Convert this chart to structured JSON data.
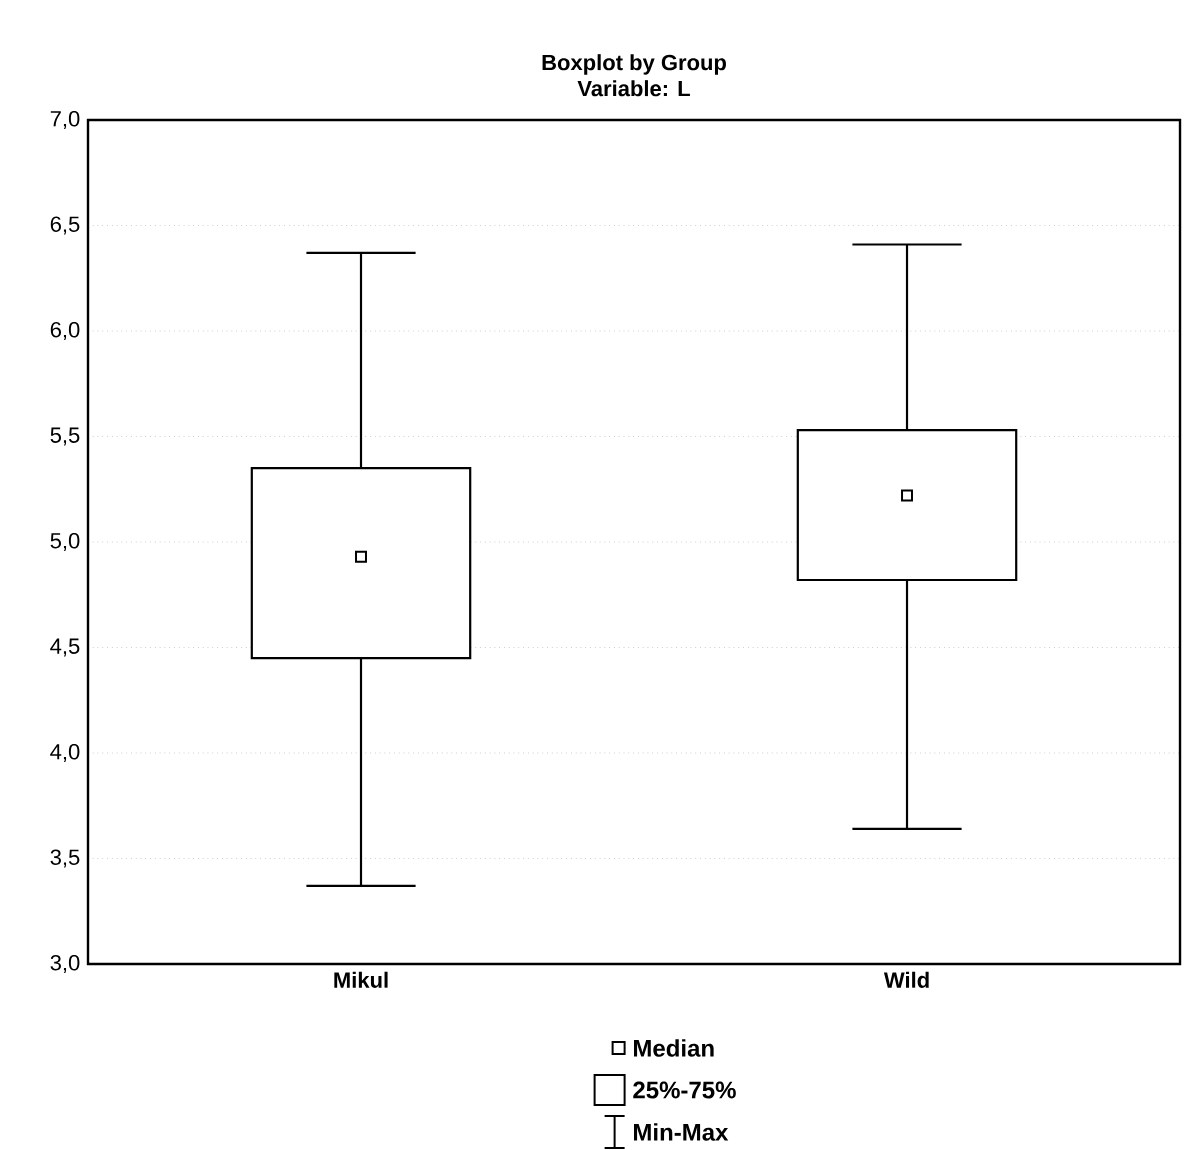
{
  "chart_data": {
    "type": "box",
    "title": "Boxplot by Group",
    "subtitle": "Variable: L",
    "categories": [
      "Mikul",
      "Wild"
    ],
    "boxes": [
      {
        "low": 3.37,
        "q1": 4.45,
        "median": 4.93,
        "q3": 5.35,
        "high": 6.37
      },
      {
        "low": 3.64,
        "q1": 4.82,
        "median": 5.22,
        "q3": 5.53,
        "high": 6.41
      }
    ],
    "color": "#000000",
    "marker": "square",
    "grid": "y",
    "annotations": [
      "Median",
      "25%-75%",
      "Min-Max"
    ],
    "ylim": [
      3,
      7
    ],
    "yticks": [
      {
        "value": 3,
        "label": "3,0"
      },
      {
        "value": 3.5,
        "label": "3,5"
      },
      {
        "value": 4,
        "label": "4,0"
      },
      {
        "value": 4.5,
        "label": "4,5"
      },
      {
        "value": 5,
        "label": "5,0"
      },
      {
        "value": 5.5,
        "label": "5,5"
      },
      {
        "value": 6,
        "label": "6,0"
      },
      {
        "value": 6.5,
        "label": "6,5"
      },
      {
        "value": 7,
        "label": "7,0"
      }
    ]
  }
}
